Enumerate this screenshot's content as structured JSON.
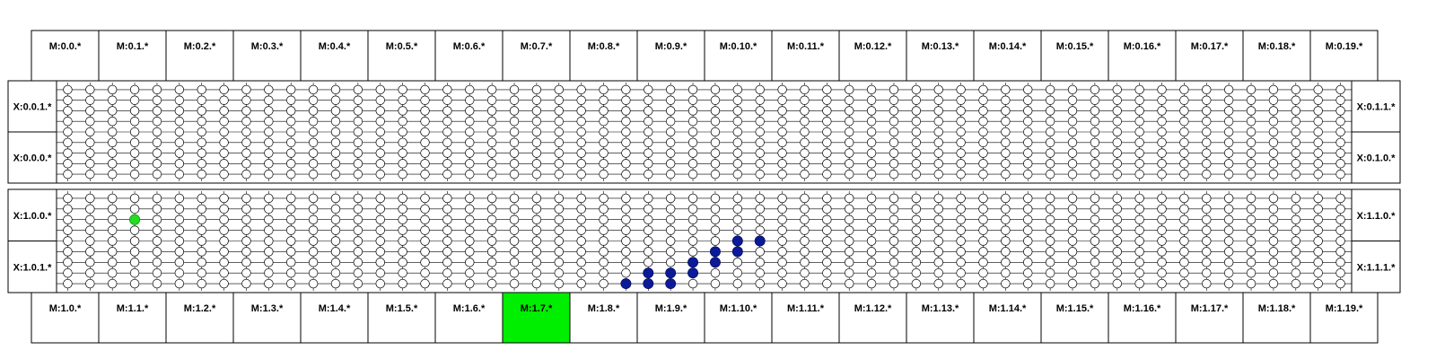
{
  "top_modules": [
    "M:0.0.*",
    "M:0.1.*",
    "M:0.2.*",
    "M:0.3.*",
    "M:0.4.*",
    "M:0.5.*",
    "M:0.6.*",
    "M:0.7.*",
    "M:0.8.*",
    "M:0.9.*",
    "M:0.10.*",
    "M:0.11.*",
    "M:0.12.*",
    "M:0.13.*",
    "M:0.14.*",
    "M:0.15.*",
    "M:0.16.*",
    "M:0.17.*",
    "M:0.18.*",
    "M:0.19.*"
  ],
  "bottom_modules": [
    "M:1.0.*",
    "M:1.1.*",
    "M:1.2.*",
    "M:1.3.*",
    "M:1.4.*",
    "M:1.5.*",
    "M:1.6.*",
    "M:1.7.*",
    "M:1.8.*",
    "M:1.9.*",
    "M:1.10.*",
    "M:1.11.*",
    "M:1.12.*",
    "M:1.13.*",
    "M:1.14.*",
    "M:1.15.*",
    "M:1.16.*",
    "M:1.17.*",
    "M:1.18.*",
    "M:1.19.*"
  ],
  "left_ports": [
    "X:0.0.1.*",
    "X:0.0.0.*",
    "X:1.0.0.*",
    "X:1.0.1.*"
  ],
  "right_ports": [
    "X:0.1.1.*",
    "X:0.1.0.*",
    "X:1.1.0.*",
    "X:1.1.1.*"
  ],
  "highlighted_module": "M:1.7.*",
  "highlight_color": "#00ee00",
  "source_color": "#22dd22",
  "path_color": "#0a1a99",
  "grid": {
    "columns": 58,
    "rows_per_block": 9
  },
  "source_node": {
    "block": 1,
    "col": 3,
    "row": 2
  },
  "path_nodes": [
    {
      "block": 1,
      "col": 25,
      "row": 8
    },
    {
      "block": 1,
      "col": 26,
      "row": 8
    },
    {
      "block": 1,
      "col": 27,
      "row": 8
    },
    {
      "block": 1,
      "col": 26,
      "row": 7
    },
    {
      "block": 1,
      "col": 27,
      "row": 7
    },
    {
      "block": 1,
      "col": 28,
      "row": 7
    },
    {
      "block": 1,
      "col": 28,
      "row": 6
    },
    {
      "block": 1,
      "col": 29,
      "row": 6
    },
    {
      "block": 1,
      "col": 29,
      "row": 5
    },
    {
      "block": 1,
      "col": 30,
      "row": 5
    },
    {
      "block": 1,
      "col": 30,
      "row": 4
    },
    {
      "block": 1,
      "col": 31,
      "row": 4
    }
  ]
}
